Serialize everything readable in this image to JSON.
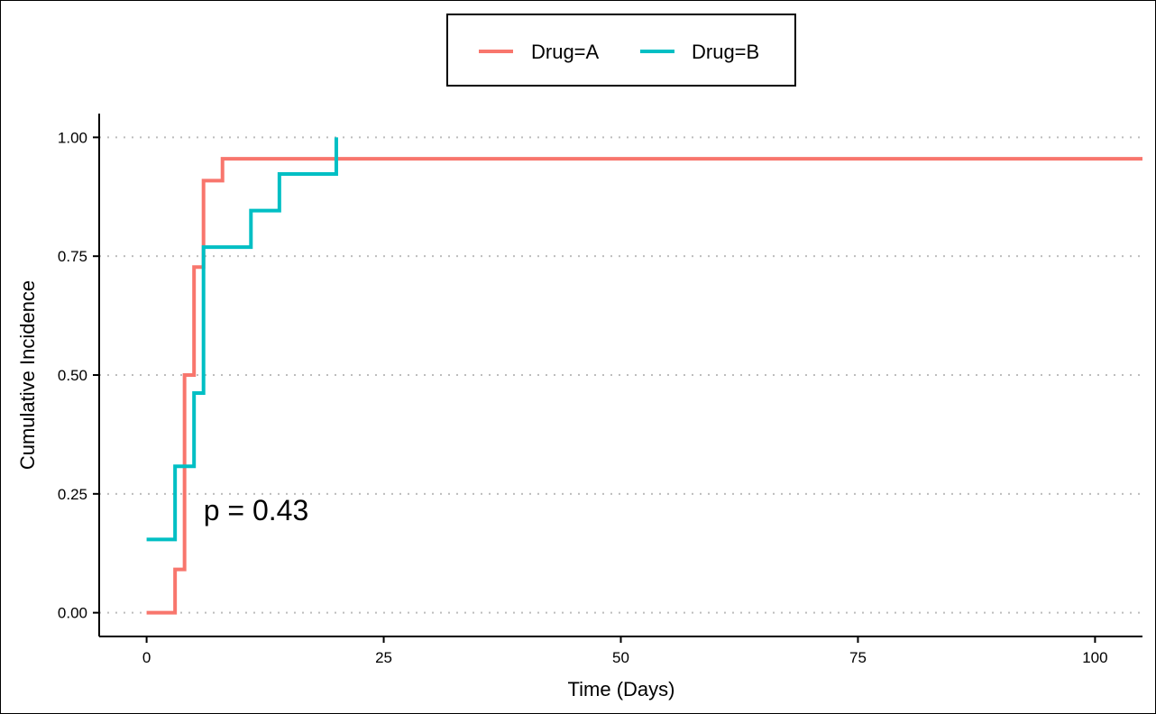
{
  "chart_data": {
    "type": "line",
    "step": true,
    "xlabel": "Time (Days)",
    "ylabel": "Cumulative Incidence",
    "xlim": [
      -5,
      105
    ],
    "ylim": [
      -0.05,
      1.05
    ],
    "x_ticks": [
      0,
      25,
      50,
      75,
      100
    ],
    "x_tick_labels": [
      "0",
      "25",
      "50",
      "75",
      "100"
    ],
    "y_ticks": [
      0,
      0.25,
      0.5,
      0.75,
      1.0
    ],
    "y_tick_labels": [
      "0.00",
      "0.25",
      "0.50",
      "0.75",
      "1.00"
    ],
    "grid": "horizontal dotted",
    "legend_position": "top",
    "annotation": {
      "text": "p = 0.43",
      "x": 6,
      "y": 0.195
    },
    "series": [
      {
        "name": "Drug=A",
        "color": "#F8766D",
        "x": [
          0,
          3,
          4,
          5,
          6,
          8,
          105
        ],
        "y": [
          0,
          0.091,
          0.5,
          0.727,
          0.909,
          0.955,
          0.955
        ]
      },
      {
        "name": "Drug=B",
        "color": "#00BFC4",
        "x": [
          0,
          3,
          5,
          6,
          11,
          14,
          20
        ],
        "y": [
          0.154,
          0.308,
          0.462,
          0.769,
          0.846,
          0.923,
          1.0
        ]
      }
    ]
  }
}
